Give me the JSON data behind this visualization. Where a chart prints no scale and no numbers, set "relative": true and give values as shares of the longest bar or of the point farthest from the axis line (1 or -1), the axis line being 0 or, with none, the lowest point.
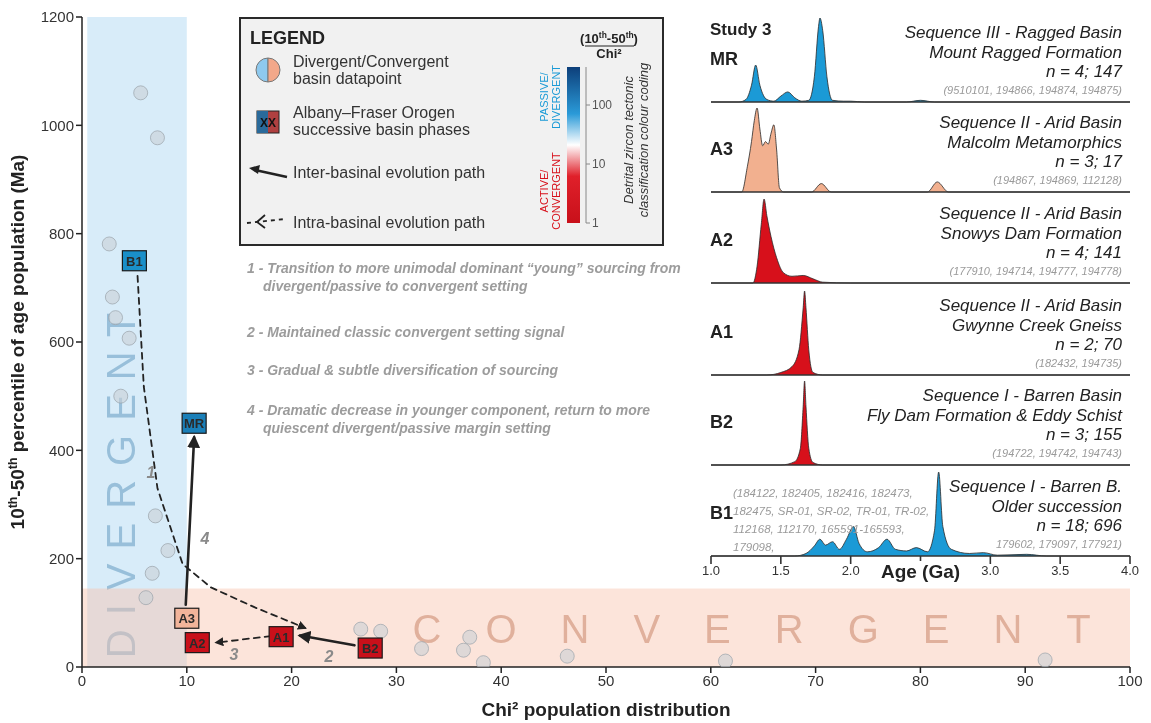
{
  "chart_data": [
    {
      "type": "scatter",
      "xlabel": "Chi² population distribution",
      "ylabel": "10$^{th}$-50$^{th}$ percentile of age population (Ma)",
      "xlim": [
        0,
        100
      ],
      "xticks": [
        0,
        10,
        20,
        30,
        40,
        50,
        60,
        70,
        80,
        90,
        100
      ],
      "ylim": [
        0,
        1200
      ],
      "yticks": [
        0,
        200,
        400,
        600,
        800,
        1000,
        1200
      ],
      "clabel": "(10$^{th}$-50$^{th}$) Chi²",
      "bands": [
        {
          "axis": "x",
          "from": 0.5,
          "to": 10,
          "label": "DIVERGENT",
          "color": "#a9d4f2"
        },
        {
          "axis": "y",
          "from": 0,
          "to": 145,
          "label": "CONVERGENT",
          "color": "#f9c4ad"
        }
      ],
      "series": [
        {
          "x": [
            5.6,
            7.2,
            2.6,
            2.9,
            3.2,
            4.5,
            3.7,
            7.0,
            8.2,
            6.7,
            6.1,
            26.6,
            28.5,
            32.4,
            36.4,
            37.0,
            38.3,
            46.3,
            61.4,
            91.9
          ],
          "values": [
            1060,
            977,
            781,
            683,
            645,
            607,
            500,
            279,
            215,
            173,
            128,
            70,
            66,
            34,
            31,
            55,
            8,
            20,
            11,
            13
          ],
          "color": "#c9d0d5",
          "marker": "circle"
        },
        {
          "x": [
            5,
            10.7,
            10,
            11,
            19,
            27.5
          ],
          "values": [
            750,
            450,
            90,
            45,
            56,
            35
          ],
          "colors": [
            "#1a8fc9",
            "#1a7fb8",
            "#f2b49a",
            "#c8101a",
            "#c8101a",
            "#c8101a"
          ],
          "marker": "square"
        },
        {
          "type": "line",
          "x": [
            5.3,
            5.9,
            7.2,
            9.6,
            12.3,
            16.5,
            21.3
          ],
          "values": [
            722,
            517,
            330,
            190,
            147,
            110,
            72
          ],
          "color": "#222222",
          "line_style": "dashed"
        },
        {
          "type": "line",
          "x": [
            18,
            12.8
          ],
          "values": [
            57,
            45
          ],
          "color": "#222222",
          "line_style": "dashed"
        },
        {
          "type": "line",
          "x": [
            26,
            20.8
          ],
          "values": [
            40,
            58
          ],
          "color": "#222222",
          "line_style": "solid"
        },
        {
          "type": "line",
          "x": [
            9.9,
            10.7
          ],
          "values": [
            115,
            424
          ],
          "color": "#222222",
          "line_style": "solid"
        }
      ],
      "annotations": [
        "LEGEND",
        "Divergent/Convergent basin datapoint",
        "Albany–Fraser Orogen successive basin phases",
        "XX",
        "Inter-basinal evolution path",
        "Intra-basinal evolution path",
        "PASSIVE/ DIVERGENT",
        "ACTIVE/ CONVERGENT",
        "Detrital zircon tectonic classification colour coding",
        "1 - Transition to more unimodal dominant “young” sourcing from divergent/passive to convergent setting",
        "2 - Maintained classic convergent setting signal",
        "3 - Gradual & subtle diversification of sourcing",
        "4 - Dramatic decrease in younger component, return to more quiescent divergent/passive margin setting",
        {
          "text": "B1",
          "x": 5,
          "y": 750
        },
        {
          "text": "MR",
          "x": 10.7,
          "y": 450
        },
        {
          "text": "A3",
          "x": 10,
          "y": 90
        },
        {
          "text": "A2",
          "x": 11,
          "y": 45
        },
        {
          "text": "A1",
          "x": 19,
          "y": 56
        },
        {
          "text": "B2",
          "x": 27.5,
          "y": 35
        },
        "1",
        "4",
        "3",
        "2",
        "100",
        "10",
        "1"
      ]
    },
    {
      "type": "area",
      "title": "Study 3",
      "ylabel": "MR",
      "relative": true,
      "xlim": [
        1,
        4
      ],
      "tick_labels": false,
      "color": "#1b9ad6",
      "x": [
        1.0,
        1.2,
        1.25,
        1.29,
        1.32,
        1.35,
        1.4,
        1.45,
        1.5,
        1.55,
        1.6,
        1.65,
        1.7,
        1.74,
        1.77,
        1.78,
        1.8,
        1.83,
        1.87,
        1.95,
        2.0,
        2.1,
        2.4,
        2.5,
        2.6,
        4.0
      ],
      "values": [
        0,
        0,
        0.03,
        0.2,
        0.44,
        0.2,
        0.03,
        0.01,
        0.07,
        0.12,
        0.05,
        0.01,
        0.02,
        0.3,
        0.9,
        1.0,
        0.85,
        0.3,
        0.02,
        0.01,
        0.01,
        0,
        0,
        0.02,
        0,
        0
      ],
      "annotations": [
        "Sequence III - Ragged Basin",
        "Mount Ragged Formation",
        "n = 4; 147",
        "(9510101, 194866, 194874, 194875)"
      ]
    },
    {
      "type": "area",
      "ylabel": "A3",
      "relative": true,
      "xlim": [
        1,
        4
      ],
      "tick_labels": false,
      "color": "#f2b08f",
      "x": [
        1.0,
        1.22,
        1.26,
        1.29,
        1.31,
        1.33,
        1.35,
        1.37,
        1.39,
        1.41,
        1.43,
        1.45,
        1.47,
        1.49,
        1.52,
        1.72,
        1.79,
        1.86,
        2.55,
        2.62,
        2.7,
        4.0
      ],
      "values": [
        0,
        0,
        0.3,
        0.6,
        0.85,
        1.0,
        0.75,
        0.55,
        0.6,
        0.57,
        0.7,
        0.8,
        0.5,
        0.05,
        0,
        0,
        0.1,
        0,
        0,
        0.12,
        0,
        0
      ],
      "annotations": [
        "Sequence II - Arid Basin",
        "Malcolm Metamorphics",
        "n = 3; 17",
        "(194867, 194869, 112128)"
      ]
    },
    {
      "type": "area",
      "ylabel": "A2",
      "relative": true,
      "xlim": [
        1,
        4
      ],
      "tick_labels": false,
      "color": "#d7101b",
      "x": [
        1.0,
        1.3,
        1.33,
        1.36,
        1.38,
        1.4,
        1.43,
        1.47,
        1.52,
        1.58,
        1.66,
        1.73,
        1.8,
        2.0,
        4.0
      ],
      "values": [
        0,
        0,
        0.2,
        0.7,
        1.0,
        0.8,
        0.55,
        0.3,
        0.12,
        0.08,
        0.09,
        0.05,
        0.01,
        0,
        0
      ],
      "annotations": [
        "Sequence II - Arid Basin",
        "Snowys Dam Formation",
        "n = 4; 141",
        "(177910, 194714, 194777, 194778)"
      ]
    },
    {
      "type": "area",
      "ylabel": "A1",
      "relative": true,
      "xlim": [
        1,
        4
      ],
      "tick_labels": false,
      "color": "#d7101b",
      "x": [
        1.0,
        1.4,
        1.5,
        1.58,
        1.63,
        1.66,
        1.67,
        1.68,
        1.7,
        1.73,
        1.8,
        4.0
      ],
      "values": [
        0,
        0,
        0.03,
        0.1,
        0.3,
        0.8,
        1.0,
        0.8,
        0.3,
        0.03,
        0,
        0
      ],
      "annotations": [
        "Sequence II - Arid Basin",
        "Gwynne Creek Gneiss",
        "n = 2; 70",
        "(182432, 194735)"
      ]
    },
    {
      "type": "area",
      "ylabel": "B2",
      "relative": true,
      "xlim": [
        1,
        4
      ],
      "tick_labels": false,
      "color": "#d7101b",
      "x": [
        1.0,
        1.5,
        1.6,
        1.64,
        1.66,
        1.67,
        1.68,
        1.7,
        1.73,
        1.8,
        4.0
      ],
      "values": [
        0,
        0,
        0.04,
        0.2,
        0.7,
        1.0,
        0.7,
        0.2,
        0.03,
        0,
        0
      ],
      "annotations": [
        "Sequence I - Barren Basin",
        "Fly Dam Formation & Eddy Schist",
        "n = 3; 155",
        "(194722, 194742, 194743)"
      ]
    },
    {
      "type": "area",
      "ylabel": "B1",
      "relative": true,
      "xlim": [
        1,
        4
      ],
      "tick_labels": "x",
      "xlabel": "Age (Ga)",
      "color": "#1b9ad6",
      "xticks": [
        {
          "value": 1,
          "label": "1.0"
        },
        1.5,
        {
          "value": 2,
          "label": "2.0"
        },
        {
          "value": 2.5,
          "label": null
        },
        {
          "value": 3,
          "label": "3.0"
        },
        3.5,
        {
          "value": 4,
          "label": "4.0"
        }
      ],
      "x": [
        1.0,
        1.6,
        1.68,
        1.74,
        1.78,
        1.82,
        1.87,
        1.92,
        1.97,
        2.02,
        2.06,
        2.12,
        2.2,
        2.26,
        2.32,
        2.4,
        2.47,
        2.55,
        2.6,
        2.63,
        2.66,
        2.72,
        2.85,
        2.95,
        3.05,
        3.26,
        3.4,
        4.0
      ],
      "values": [
        0,
        0,
        0.03,
        0.12,
        0.2,
        0.13,
        0.17,
        0.08,
        0.2,
        0.35,
        0.15,
        0.05,
        0.1,
        0.2,
        0.08,
        0.06,
        0.1,
        0.05,
        0.3,
        1.0,
        0.35,
        0.08,
        0.03,
        0.04,
        0.01,
        0.02,
        0,
        0
      ],
      "annotations": [
        "Sequence I - Barren B.",
        "Older succession",
        "n = 18; 696",
        "179602, 179097, 177921)",
        "(184122, 182405, 182416, 182473, 182475, SR-01, SR-02, TR-01, TR-02, 112168, 112170, 165591-165593, 179098,"
      ]
    }
  ]
}
